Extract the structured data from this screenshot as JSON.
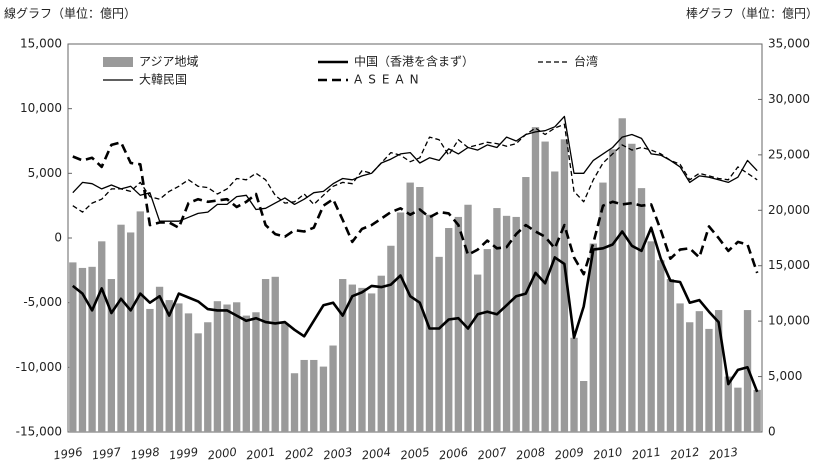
{
  "chart_data": {
    "type": "combo",
    "ylabel": "線グラフ（単位：億円）",
    "y2label": "棒グラフ（単位：億円）",
    "ylim": [
      -15000,
      15000
    ],
    "yticks": [
      {
        "value": -15000,
        "label": "-15,000"
      },
      {
        "value": -10000,
        "label": "-10,000"
      },
      {
        "value": -5000,
        "label": "-5,000"
      },
      0,
      {
        "value": 5000,
        "label": "5,000"
      },
      {
        "value": 10000,
        "label": "10,000"
      },
      {
        "value": 15000,
        "label": "15,000"
      }
    ],
    "y2lim": [
      0,
      35000
    ],
    "y2ticks": [
      0,
      {
        "value": 5000,
        "label": "5,000"
      },
      {
        "value": 10000,
        "label": "10,000"
      },
      {
        "value": 15000,
        "label": "15,000"
      },
      {
        "value": 20000,
        "label": "20,000"
      },
      {
        "value": 25000,
        "label": "25,000"
      },
      {
        "value": 30000,
        "label": "30,000"
      },
      {
        "value": 35000,
        "label": "35,000"
      }
    ],
    "categories": [
      "1996",
      null,
      null,
      null,
      "1997",
      null,
      null,
      null,
      "1998",
      null,
      null,
      null,
      "1999",
      null,
      null,
      null,
      "2000",
      null,
      null,
      null,
      "2001",
      null,
      null,
      null,
      "2002",
      null,
      null,
      null,
      "2003",
      null,
      null,
      null,
      "2004",
      null,
      null,
      null,
      "2005",
      null,
      null,
      null,
      "2006",
      null,
      null,
      null,
      "2007",
      null,
      null,
      null,
      "2008",
      null,
      null,
      null,
      "2009",
      null,
      null,
      null,
      "2010",
      null,
      null,
      null,
      "2011",
      null,
      null,
      null,
      "2012",
      null,
      null,
      null,
      "2013",
      null,
      null,
      null
    ],
    "series": [
      {
        "name": "アジア地域",
        "type": "bar",
        "axis": "y2",
        "color": "#9a9a9a",
        "values": [
          15300,
          14800,
          14900,
          17200,
          13800,
          18700,
          18000,
          19900,
          11100,
          13100,
          11900,
          11600,
          10700,
          8900,
          9900,
          11800,
          11500,
          11700,
          10500,
          10800,
          13800,
          14000,
          9800,
          5300,
          6500,
          6500,
          5900,
          7800,
          13800,
          13300,
          13000,
          12500,
          14100,
          16800,
          19800,
          22500,
          22100,
          19600,
          15800,
          18400,
          19400,
          20500,
          14200,
          16500,
          20200,
          19500,
          19400,
          23000,
          27500,
          26200,
          23500,
          26400,
          8500,
          4600,
          17000,
          22500,
          25500,
          28300,
          26000,
          22000,
          17200,
          15500,
          13800,
          11600,
          9900,
          10900,
          9300,
          11000,
          5000,
          4000,
          11000,
          3800
        ]
      },
      {
        "name": "中国（香港を含まず）",
        "type": "line",
        "color": "#000000",
        "linewidth": 2.6,
        "linestyle": "solid",
        "values": [
          -3700,
          -4300,
          -5600,
          -3900,
          -5800,
          -4700,
          -5600,
          -4300,
          -5000,
          -4500,
          -6000,
          -4300,
          -4600,
          -4900,
          -5500,
          -5600,
          -5600,
          -6000,
          -6400,
          -6200,
          -6500,
          -6600,
          -6500,
          -7100,
          -7600,
          -6400,
          -5200,
          -5000,
          -6000,
          -4500,
          -4200,
          -3700,
          -3800,
          -3600,
          -2900,
          -4500,
          -5000,
          -7000,
          -7000,
          -6300,
          -6200,
          -7000,
          -5900,
          -5700,
          -5900,
          -5200,
          -4500,
          -4300,
          -2700,
          -3500,
          -1500,
          -2000,
          -7700,
          -5300,
          -900,
          -800,
          -500,
          500,
          -600,
          -1000,
          800,
          -1600,
          -3300,
          -3400,
          -5000,
          -4800,
          -5700,
          -6500,
          -11300,
          -10200,
          -10000,
          -11900
        ]
      },
      {
        "name": "台湾",
        "type": "line",
        "color": "#000000",
        "linewidth": 1.3,
        "linestyle": "dashed",
        "values": [
          2500,
          2000,
          2700,
          3000,
          3800,
          3800,
          3600,
          4300,
          3200,
          3000,
          3600,
          4000,
          4500,
          4000,
          3900,
          3400,
          3800,
          4600,
          4500,
          5000,
          4500,
          3300,
          2700,
          2800,
          3400,
          2600,
          3300,
          4000,
          4300,
          4200,
          5200,
          5000,
          5800,
          6600,
          6400,
          5900,
          6200,
          7800,
          7600,
          6400,
          7600,
          7000,
          7200,
          7400,
          7300,
          7100,
          7300,
          8000,
          8500,
          8000,
          8500,
          8800,
          3600,
          2800,
          4500,
          5800,
          6500,
          7200,
          6800,
          7000,
          6800,
          6500,
          6000,
          5700,
          4500,
          5000,
          4800,
          4600,
          4500,
          5500,
          5000,
          4500
        ]
      },
      {
        "name": "大韓民国",
        "type": "line",
        "color": "#000000",
        "linewidth": 1.3,
        "linestyle": "solid",
        "values": [
          3500,
          4300,
          4200,
          3800,
          4100,
          3800,
          4000,
          3300,
          3500,
          1300,
          1300,
          1300,
          1600,
          1900,
          2000,
          2600,
          2600,
          3200,
          3300,
          2200,
          2300,
          2700,
          3100,
          2600,
          3000,
          3500,
          3600,
          4200,
          4600,
          4500,
          4800,
          5000,
          5800,
          6100,
          6500,
          6600,
          5800,
          6200,
          6000,
          6900,
          6500,
          7000,
          6800,
          7200,
          7000,
          7800,
          7500,
          8000,
          8200,
          8300,
          8600,
          9400,
          5000,
          5000,
          6000,
          6500,
          7000,
          7800,
          8000,
          7700,
          6500,
          6400,
          6000,
          5500,
          4300,
          4800,
          4700,
          4500,
          4300,
          4700,
          6000,
          5200
        ]
      },
      {
        "name": "ASEAN",
        "type": "line",
        "color": "#000000",
        "linewidth": 2.6,
        "linestyle": "dashed",
        "values": [
          6300,
          6000,
          6200,
          5500,
          7200,
          7400,
          5800,
          5700,
          1000,
          1200,
          1200,
          800,
          2700,
          3000,
          2800,
          2900,
          3000,
          2400,
          2800,
          3400,
          1000,
          300,
          100,
          600,
          500,
          800,
          2500,
          3000,
          1400,
          -300,
          700,
          1000,
          1500,
          2000,
          2300,
          1800,
          2200,
          1600,
          2000,
          1900,
          1000,
          -1300,
          -900,
          -200,
          -800,
          -700,
          300,
          1000,
          500,
          100,
          -800,
          1000,
          -1500,
          -2800,
          -400,
          2500,
          2800,
          2600,
          2700,
          2500,
          2600,
          600,
          -1600,
          -900,
          -800,
          -1500,
          900,
          0,
          -1000,
          -300,
          -500,
          -2700
        ]
      }
    ]
  }
}
